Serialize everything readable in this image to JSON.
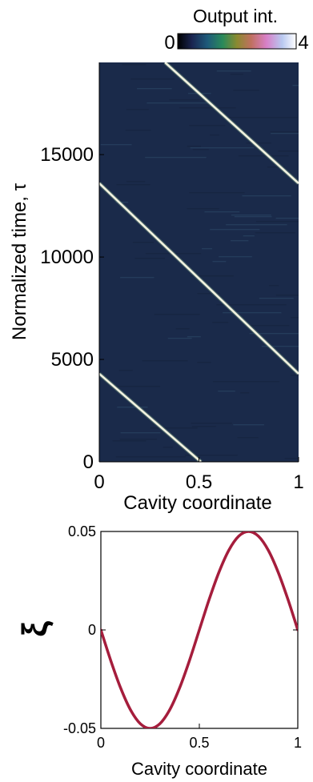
{
  "chart_data": [
    {
      "type": "heatmap",
      "colorbar": {
        "label": "Output int.",
        "min_label": "0",
        "max_label": "4",
        "range": [
          0,
          4
        ]
      },
      "xlabel": "Cavity coordinate",
      "ylabel": "Normalized time, τ",
      "xlim": [
        0,
        1
      ],
      "ylim": [
        0,
        19500
      ],
      "xticks": [
        "0",
        "0.5",
        "1"
      ],
      "yticks": [
        {
          "value": 0,
          "label": "0"
        },
        {
          "value": 5000,
          "label": "5000"
        },
        {
          "value": 10000,
          "label": "10000"
        },
        {
          "value": 15000,
          "label": "15000"
        }
      ],
      "xtick_values": [
        0,
        0.5,
        1
      ],
      "tracks": [
        {
          "from": [
            0,
            4300
          ],
          "to": [
            0.51,
            0
          ]
        },
        {
          "from": [
            0,
            13600
          ],
          "to": [
            1,
            4300
          ]
        },
        {
          "from": [
            0.33,
            19500
          ],
          "to": [
            1,
            13600
          ]
        }
      ],
      "colors": {
        "background": "#1a2a4a",
        "track": "#f2f2e0"
      }
    },
    {
      "type": "line",
      "xlabel": "Cavity coordinate",
      "ylabel": "ξ",
      "xlim": [
        0,
        1
      ],
      "ylim": [
        -0.05,
        0.05
      ],
      "xticks": [
        "0",
        "0.5",
        "1"
      ],
      "xtick_values": [
        0,
        0.5,
        1
      ],
      "yticks": [
        {
          "value": -0.05,
          "label": "-0.05"
        },
        {
          "value": 0,
          "label": "0"
        },
        {
          "value": 0.05,
          "label": "0.05"
        }
      ],
      "series": [
        {
          "x": [
            0,
            0.05,
            0.1,
            0.15,
            0.2,
            0.25,
            0.3,
            0.35,
            0.4,
            0.45,
            0.5,
            0.55,
            0.6,
            0.65,
            0.7,
            0.75,
            0.8,
            0.85,
            0.9,
            0.95,
            1
          ],
          "y": [
            0,
            -0.0155,
            -0.0294,
            -0.0405,
            -0.0476,
            -0.05,
            -0.0476,
            -0.0405,
            -0.0294,
            -0.0155,
            0,
            0.0155,
            0.0294,
            0.0405,
            0.0476,
            0.05,
            0.0476,
            0.0405,
            0.0294,
            0.0155,
            0
          ]
        }
      ],
      "colors": {
        "line": "#a51d3c"
      }
    }
  ]
}
